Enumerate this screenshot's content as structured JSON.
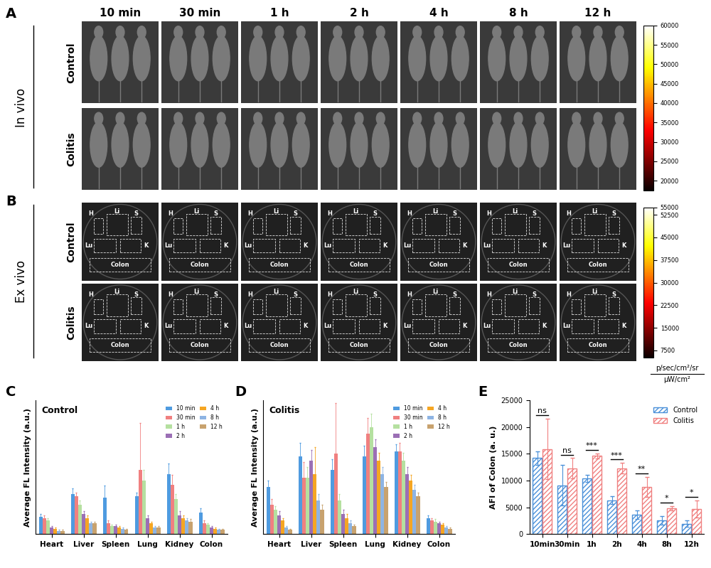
{
  "imaging": {
    "in_vivo": {
      "panel": "A",
      "section": "In vivo",
      "time_points": [
        "10 min",
        "30 min",
        "1 h",
        "2 h",
        "4 h",
        "8 h",
        "12 h"
      ],
      "rows": [
        "Control",
        "Colitis"
      ],
      "colorbar": {
        "range": [
          17500,
          60000
        ],
        "ticks": [
          20000,
          25000,
          30000,
          35000,
          40000,
          45000,
          50000,
          55000,
          60000
        ]
      }
    },
    "ex_vivo": {
      "panel": "B",
      "section": "Ex vivo",
      "rows": [
        "Control",
        "Colitis"
      ],
      "organ_labels": [
        "H",
        "Li",
        "S",
        "Lu",
        "K",
        "Colon"
      ],
      "colorbar": {
        "range": [
          5000,
          55000
        ],
        "ticks": [
          7500,
          15000,
          22500,
          30000,
          37500,
          45000,
          52500,
          55000
        ]
      },
      "unit": [
        "p/sec/cm²/sr",
        "µW/cm²"
      ]
    }
  },
  "chart_data": [
    {
      "panel": "C",
      "type": "bar",
      "title": "Control",
      "y_label": "Average FL Intensity (a.u.)",
      "categories": [
        "Heart",
        "Liver",
        "Spleen",
        "Lung",
        "Kidney",
        "Colon"
      ],
      "ylim": [
        0,
        100
      ],
      "tick_labels": "x",
      "legend": "upper right",
      "series": [
        {
          "name": "10 min",
          "color": "#4f9be0",
          "values": [
            13,
            30,
            27,
            28,
            45,
            16
          ],
          "errors": [
            2,
            4,
            9,
            3,
            8,
            3
          ]
        },
        {
          "name": "30 min",
          "color": "#f08080",
          "values": [
            12,
            28,
            8,
            48,
            37,
            8
          ],
          "errors": [
            2,
            3,
            2,
            35,
            7,
            2
          ]
        },
        {
          "name": "1 h",
          "color": "#b5e0a0",
          "values": [
            10,
            22,
            6,
            40,
            26,
            7
          ],
          "errors": [
            2,
            3,
            1,
            8,
            4,
            1
          ]
        },
        {
          "name": "2 h",
          "color": "#9b6fb5",
          "values": [
            5,
            15,
            6,
            12,
            14,
            5
          ],
          "errors": [
            1,
            2,
            1,
            2,
            3,
            1
          ]
        },
        {
          "name": "4 h",
          "color": "#f5a623",
          "values": [
            4,
            12,
            5,
            8,
            12,
            4
          ],
          "errors": [
            1,
            2,
            1,
            1,
            2,
            1
          ]
        },
        {
          "name": "8 h",
          "color": "#8eb4e3",
          "values": [
            2,
            8,
            4,
            5,
            10,
            3
          ],
          "errors": [
            1,
            1,
            1,
            1,
            2,
            1
          ]
        },
        {
          "name": "12 h",
          "color": "#c8a26e",
          "values": [
            2,
            8,
            3,
            5,
            9,
            3
          ],
          "errors": [
            1,
            1,
            1,
            1,
            2,
            1
          ]
        }
      ]
    },
    {
      "panel": "D",
      "type": "bar",
      "title": "Colitis",
      "y_label": "Average FL Intensity (a.u.)",
      "categories": [
        "Heart",
        "Liver",
        "Spleen",
        "Lung",
        "Kidney",
        "Colon"
      ],
      "ylim": [
        0,
        100
      ],
      "tick_labels": "x",
      "legend": "upper right",
      "series": [
        {
          "name": "10 min",
          "color": "#4f9be0",
          "values": [
            35,
            58,
            48,
            58,
            62,
            12
          ],
          "errors": [
            5,
            10,
            8,
            8,
            5,
            2
          ]
        },
        {
          "name": "30 min",
          "color": "#f08080",
          "values": [
            22,
            42,
            60,
            75,
            62,
            10
          ],
          "errors": [
            4,
            12,
            38,
            12,
            6,
            2
          ]
        },
        {
          "name": "1 h",
          "color": "#b5e0a0",
          "values": [
            18,
            42,
            25,
            80,
            55,
            9
          ],
          "errors": [
            3,
            8,
            5,
            10,
            6,
            2
          ]
        },
        {
          "name": "2 h",
          "color": "#9b6fb5",
          "values": [
            14,
            55,
            15,
            65,
            45,
            8
          ],
          "errors": [
            3,
            8,
            3,
            6,
            5,
            1
          ]
        },
        {
          "name": "4 h",
          "color": "#f5a623",
          "values": [
            10,
            45,
            12,
            55,
            40,
            7
          ],
          "errors": [
            2,
            20,
            3,
            6,
            4,
            1
          ]
        },
        {
          "name": "8 h",
          "color": "#8eb4e3",
          "values": [
            5,
            25,
            8,
            45,
            33,
            5
          ],
          "errors": [
            1,
            5,
            2,
            5,
            4,
            1
          ]
        },
        {
          "name": "12 h",
          "color": "#c8a26e",
          "values": [
            3,
            18,
            6,
            35,
            28,
            4
          ],
          "errors": [
            1,
            4,
            1,
            4,
            3,
            1
          ]
        }
      ]
    },
    {
      "panel": "E",
      "type": "bar",
      "y_label": "AFI of Colon (a. u.)",
      "categories": [
        "10min",
        "30min",
        "1h",
        "2h",
        "4h",
        "8h",
        "12h"
      ],
      "ylim": [
        0,
        25000
      ],
      "yticks": [
        0,
        5000,
        10000,
        15000,
        20000,
        25000
      ],
      "legend": "upper right",
      "series": [
        {
          "name": "Control",
          "color": "#4a90d9",
          "values": [
            14200,
            9100,
            10400,
            6300,
            3600,
            2500,
            1900
          ],
          "errors": [
            1300,
            3800,
            700,
            700,
            800,
            800,
            600
          ]
        },
        {
          "name": "Colitis",
          "color": "#f08080",
          "values": [
            15900,
            12300,
            14600,
            12300,
            8800,
            4800,
            4700
          ],
          "errors": [
            5700,
            1900,
            500,
            1000,
            1900,
            400,
            1600
          ]
        }
      ],
      "significance": [
        "ns",
        "ns",
        "***",
        "***",
        "**",
        "*",
        "*"
      ]
    }
  ]
}
